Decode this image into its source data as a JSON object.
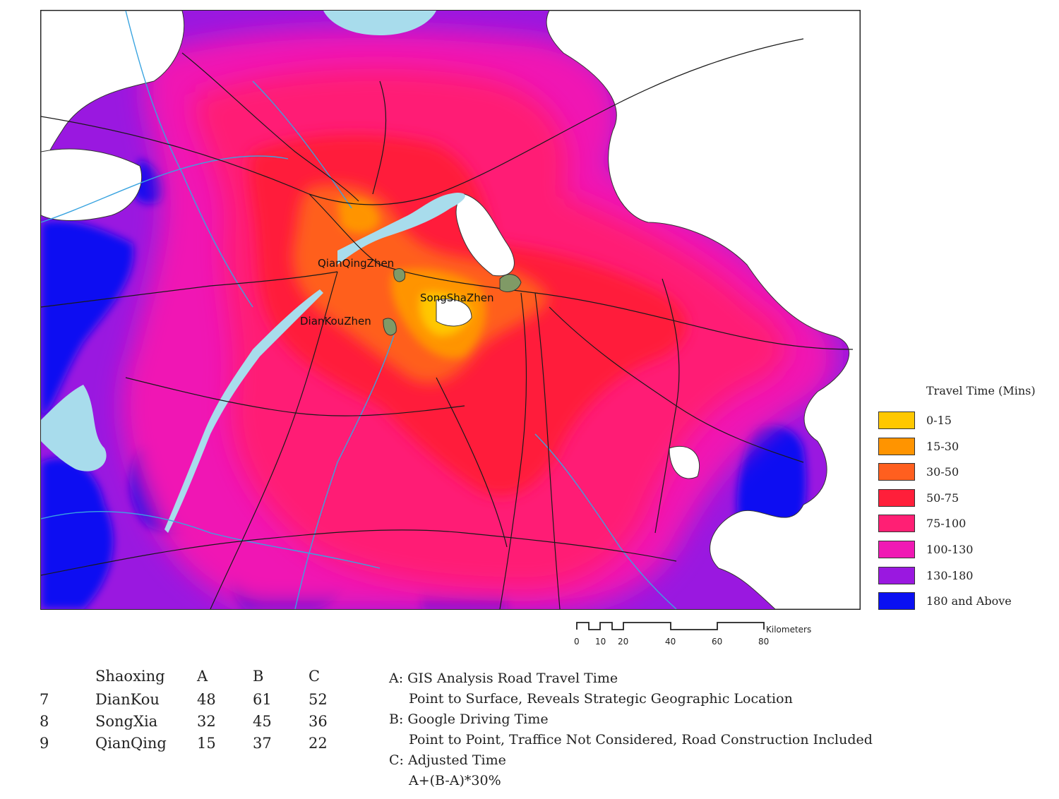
{
  "map": {
    "places": [
      {
        "label": "QianQingZhen"
      },
      {
        "label": "SongShaZhen"
      },
      {
        "label": "DianKouZhen"
      }
    ],
    "colors": {
      "tt_0_15": "#ffc800",
      "tt_15_30": "#ff9400",
      "tt_30_50": "#ff5f1f",
      "tt_50_75": "#ff1f3a",
      "tt_75_100": "#ff1f74",
      "tt_100_130": "#f019b4",
      "tt_130_180": "#9a18e0",
      "tt_180_plus": "#0a10f2",
      "water": "#a8dcec",
      "town": "#809a66",
      "road": "#1a1a1a",
      "river": "#3aa4e0"
    }
  },
  "legend": {
    "title": "Travel Time (Mins)",
    "items": [
      {
        "label": "0-15",
        "color": "#ffc800"
      },
      {
        "label": "15-30",
        "color": "#ff9400"
      },
      {
        "label": "30-50",
        "color": "#ff5f1f"
      },
      {
        "label": "50-75",
        "color": "#ff1f3a"
      },
      {
        "label": "75-100",
        "color": "#ff1f74"
      },
      {
        "label": "100-130",
        "color": "#f019b4"
      },
      {
        "label": "130-180",
        "color": "#9a18e0"
      },
      {
        "label": "180 and Above",
        "color": "#0a10f2"
      }
    ]
  },
  "scalebar": {
    "unit": "Kilometers",
    "ticks": [
      "0",
      "10",
      "20",
      "40",
      "60",
      "80"
    ]
  },
  "table": {
    "headers": [
      "",
      "Shaoxing",
      "A",
      "B",
      "C"
    ],
    "rows": [
      [
        "7",
        "DianKou",
        "48",
        "61",
        "52"
      ],
      [
        "8",
        "SongXia",
        "32",
        "45",
        "36"
      ],
      [
        "9",
        "QianQing",
        "15",
        "37",
        "22"
      ]
    ]
  },
  "notes": [
    "A: GIS Analysis Road Travel Time",
    "Point to Surface, Reveals Strategic Geographic Location",
    "B: Google Driving Time",
    "Point to Point, Traffice Not Considered, Road Construction Included",
    "C: Adjusted Time",
    "A+(B-A)*30%"
  ]
}
